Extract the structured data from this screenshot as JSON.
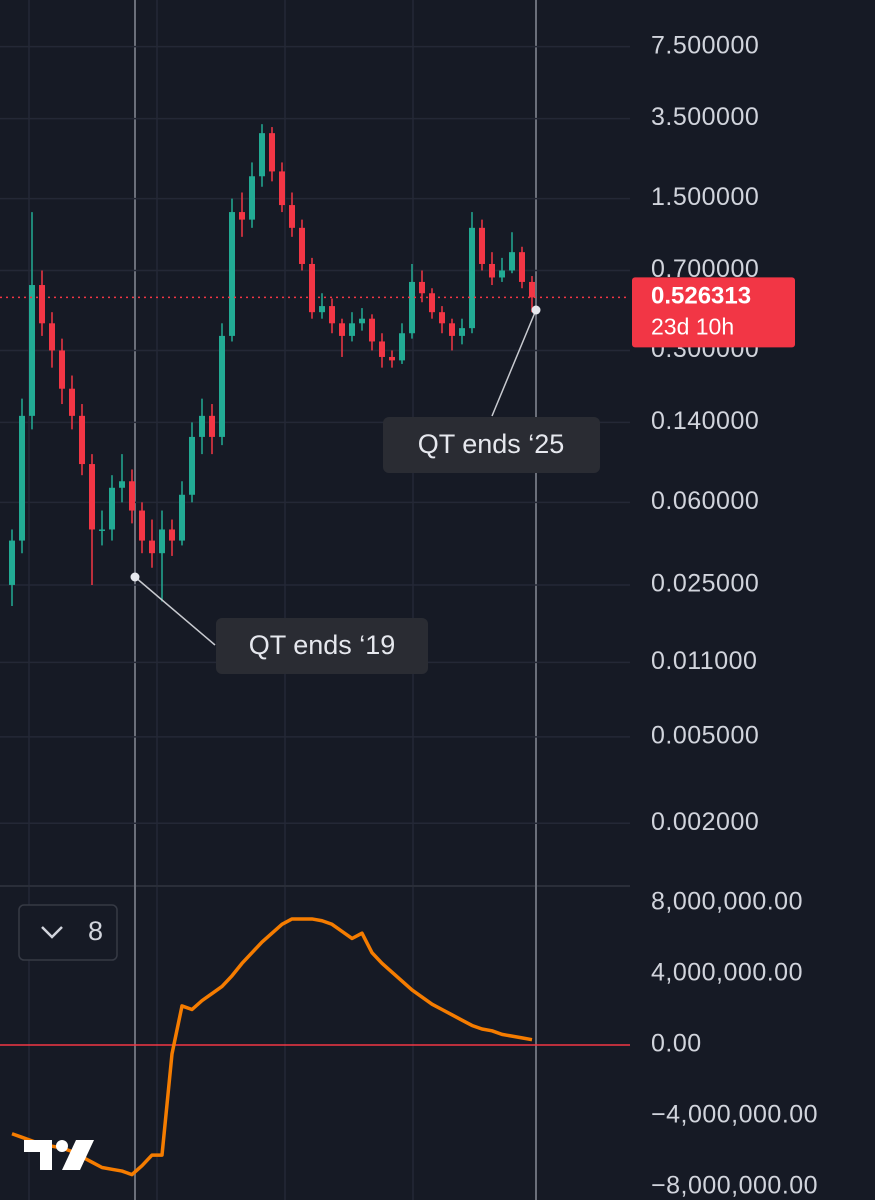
{
  "chart_data": [
    {
      "type": "candlestick",
      "log_scale": true,
      "grid": true,
      "ylim": [
        0.00104,
        12.3
      ],
      "yticks": [
        {
          "value": 7.5,
          "label": "7.500000"
        },
        {
          "value": 3.5,
          "label": "3.500000"
        },
        {
          "value": 1.5,
          "label": "1.500000"
        },
        {
          "value": 0.7,
          "label": "0.700000"
        },
        {
          "value": 0.3,
          "label": "0.300000"
        },
        {
          "value": 0.14,
          "label": "0.140000"
        },
        {
          "value": 0.06,
          "label": "0.060000"
        },
        {
          "value": 0.025,
          "label": "0.025000"
        },
        {
          "value": 0.011,
          "label": "0.011000"
        },
        {
          "value": 0.005,
          "label": "0.005000"
        },
        {
          "value": 0.002,
          "label": "0.002000"
        }
      ],
      "up_color": "#22ab94",
      "down_color": "#f23645",
      "open": [
        0.025,
        0.04,
        0.15,
        0.6,
        0.4,
        0.3,
        0.2,
        0.15,
        0.09,
        0.045,
        0.045,
        0.07,
        0.075,
        0.055,
        0.04,
        0.035,
        0.045,
        0.04,
        0.065,
        0.12,
        0.15,
        0.12,
        0.35,
        1.3,
        1.2,
        1.9,
        3.0,
        2.0,
        1.4,
        1.1,
        0.75,
        0.45,
        0.48,
        0.4,
        0.35,
        0.4,
        0.42,
        0.33,
        0.28,
        0.27,
        0.36,
        0.62,
        0.55,
        0.45,
        0.4,
        0.35,
        0.38,
        1.1,
        0.75,
        0.65,
        0.7,
        0.85,
        0.62
      ],
      "high": [
        0.045,
        0.18,
        1.3,
        0.7,
        0.45,
        0.34,
        0.23,
        0.17,
        0.1,
        0.055,
        0.08,
        0.1,
        0.085,
        0.06,
        0.05,
        0.055,
        0.05,
        0.075,
        0.14,
        0.18,
        0.17,
        0.4,
        1.5,
        1.6,
        2.2,
        3.3,
        3.2,
        2.2,
        1.6,
        1.2,
        0.8,
        0.55,
        0.52,
        0.42,
        0.45,
        0.47,
        0.44,
        0.36,
        0.3,
        0.4,
        0.75,
        0.7,
        0.58,
        0.48,
        0.42,
        0.42,
        1.3,
        1.2,
        0.85,
        0.8,
        1.05,
        0.9,
        0.66
      ],
      "low": [
        0.02,
        0.035,
        0.13,
        0.35,
        0.25,
        0.17,
        0.13,
        0.08,
        0.025,
        0.038,
        0.04,
        0.06,
        0.048,
        0.035,
        0.03,
        0.021,
        0.034,
        0.038,
        0.06,
        0.1,
        0.1,
        0.11,
        0.33,
        1.0,
        1.1,
        1.7,
        1.8,
        1.3,
        1.0,
        0.7,
        0.42,
        0.42,
        0.36,
        0.28,
        0.33,
        0.37,
        0.3,
        0.25,
        0.25,
        0.26,
        0.34,
        0.5,
        0.42,
        0.36,
        0.3,
        0.32,
        0.36,
        0.7,
        0.6,
        0.62,
        0.68,
        0.58,
        0.45
      ],
      "close": [
        0.04,
        0.15,
        0.6,
        0.4,
        0.3,
        0.2,
        0.15,
        0.09,
        0.045,
        0.045,
        0.07,
        0.075,
        0.055,
        0.04,
        0.035,
        0.045,
        0.04,
        0.065,
        0.12,
        0.15,
        0.12,
        0.35,
        1.3,
        1.2,
        1.9,
        3.0,
        2.0,
        1.4,
        1.1,
        0.75,
        0.45,
        0.48,
        0.4,
        0.35,
        0.4,
        0.42,
        0.33,
        0.28,
        0.27,
        0.36,
        0.62,
        0.55,
        0.45,
        0.4,
        0.35,
        0.38,
        1.1,
        0.75,
        0.65,
        0.7,
        0.85,
        0.62,
        0.526313
      ],
      "last_price": 0.526313,
      "countdown": "23d 10h",
      "annotations": [
        "QT ends ‘19",
        "QT ends ‘25"
      ]
    },
    {
      "type": "line",
      "badge": "8",
      "color": "#f57c00",
      "ylim": [
        -8730000,
        8900000
      ],
      "yticks": [
        {
          "value": 8000000,
          "label": "8,000,000.00"
        },
        {
          "value": 4000000,
          "label": "4,000,000.00"
        },
        {
          "value": 0,
          "label": "0.00"
        },
        {
          "value": -4000000,
          "label": "−4,000,000.00"
        },
        {
          "value": -8000000,
          "label": "−8,000,000.00"
        }
      ],
      "values": [
        -5000000,
        -5200000,
        -5400000,
        -5600000,
        -5700000,
        -5800000,
        -6000000,
        -6300000,
        -6600000,
        -6900000,
        -7000000,
        -7100000,
        -7300000,
        -6800000,
        -6200000,
        -6200000,
        -500000,
        2200000,
        2000000,
        2500000,
        2900000,
        3300000,
        3900000,
        4600000,
        5200000,
        5800000,
        6300000,
        6800000,
        7100000,
        7100000,
        7100000,
        7000000,
        6800000,
        6400000,
        6000000,
        6300000,
        5200000,
        4600000,
        4100000,
        3600000,
        3100000,
        2700000,
        2300000,
        2000000,
        1700000,
        1400000,
        1100000,
        900000,
        800000,
        600000,
        500000,
        400000,
        300000
      ]
    }
  ]
}
